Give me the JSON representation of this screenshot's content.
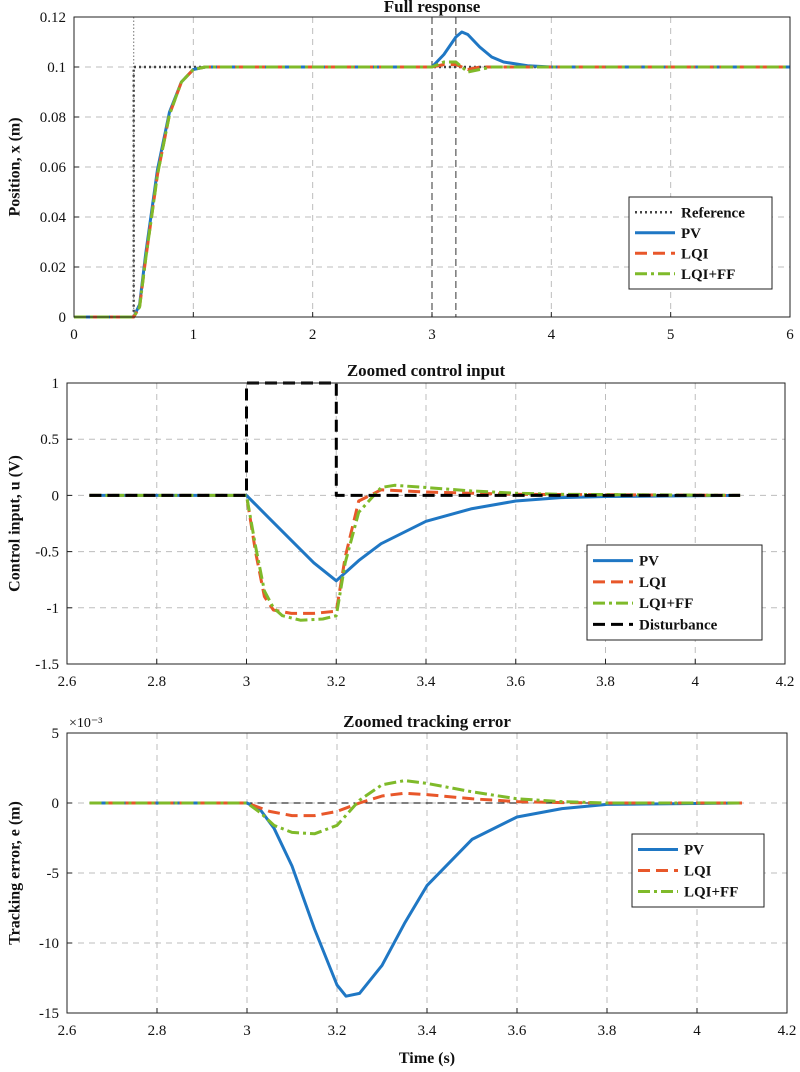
{
  "colors": {
    "pv": "#1f77c4",
    "lqi": "#e8572a",
    "lqiff": "#7fba2a",
    "reference": "#444444",
    "disturbance": "#000000",
    "grid": "#bdbdbd"
  },
  "chart_data": [
    {
      "type": "line",
      "title": "Full response",
      "xlabel": "",
      "ylabel": "Position, x (m)",
      "xlim": [
        0,
        6
      ],
      "ylim": [
        0,
        0.12
      ],
      "xticks": [
        "0",
        "1",
        "2",
        "3",
        "4",
        "5",
        "6"
      ],
      "yticks": [
        "0",
        "0.02",
        "0.04",
        "0.06",
        "0.08",
        "0.1",
        "0.12"
      ],
      "grid": true,
      "legend_position": "bottom-right",
      "vlines": [
        0.5,
        3.0,
        3.2
      ],
      "series": [
        {
          "name": "Reference",
          "style": "dotted",
          "color_key": "reference",
          "x": [
            0,
            0.5,
            0.5,
            1.2,
            3.0,
            3.2,
            6.0
          ],
          "y": [
            0,
            0,
            0.1,
            0.1,
            0.1,
            0.1,
            0.1
          ]
        },
        {
          "name": "PV",
          "style": "solid",
          "color_key": "pv",
          "x": [
            0,
            0.5,
            0.55,
            0.6,
            0.7,
            0.8,
            0.9,
            1.0,
            1.1,
            1.2,
            3.0,
            3.1,
            3.2,
            3.25,
            3.3,
            3.4,
            3.5,
            3.6,
            3.8,
            4.0,
            6.0
          ],
          "y": [
            0,
            0,
            0.005,
            0.025,
            0.059,
            0.082,
            0.094,
            0.099,
            0.1,
            0.1,
            0.1,
            0.105,
            0.112,
            0.114,
            0.113,
            0.108,
            0.104,
            0.102,
            0.1005,
            0.1,
            0.1
          ]
        },
        {
          "name": "LQI",
          "style": "dashed",
          "color_key": "lqi",
          "x": [
            0,
            0.5,
            0.55,
            0.6,
            0.7,
            0.8,
            0.9,
            1.0,
            1.1,
            1.2,
            3.0,
            3.1,
            3.2,
            3.3,
            3.4,
            3.5,
            3.6,
            6.0
          ],
          "y": [
            0,
            0,
            0.004,
            0.023,
            0.057,
            0.081,
            0.094,
            0.099,
            0.1,
            0.1,
            0.1,
            0.101,
            0.101,
            0.099,
            0.1,
            0.1,
            0.1,
            0.1
          ]
        },
        {
          "name": "LQI+FF",
          "style": "dashdot",
          "color_key": "lqiff",
          "x": [
            0,
            0.5,
            0.55,
            0.6,
            0.7,
            0.8,
            0.9,
            1.0,
            1.1,
            1.2,
            3.0,
            3.1,
            3.2,
            3.3,
            3.4,
            3.5,
            3.6,
            6.0
          ],
          "y": [
            0,
            0,
            0.004,
            0.023,
            0.057,
            0.081,
            0.094,
            0.099,
            0.1,
            0.1,
            0.1,
            0.102,
            0.102,
            0.098,
            0.099,
            0.1,
            0.1,
            0.1
          ]
        }
      ]
    },
    {
      "type": "line",
      "title": "Zoomed control input",
      "xlabel": "",
      "ylabel": "Control input, u (V)",
      "xlim": [
        2.6,
        4.2
      ],
      "ylim": [
        -1.5,
        1
      ],
      "xticks": [
        "2.6",
        "2.8",
        "3",
        "3.2",
        "3.4",
        "3.6",
        "3.8",
        "4",
        "4.2"
      ],
      "yticks": [
        "-1.5",
        "-1",
        "-0.5",
        "0",
        "0.5",
        "1"
      ],
      "grid": true,
      "legend_position": "bottom-right",
      "vlines": [],
      "series": [
        {
          "name": "PV",
          "style": "solid",
          "color_key": "pv",
          "x": [
            2.65,
            3.0,
            3.05,
            3.1,
            3.15,
            3.2,
            3.25,
            3.3,
            3.4,
            3.5,
            3.6,
            3.7,
            3.8,
            4.1
          ],
          "y": [
            0,
            0,
            -0.2,
            -0.4,
            -0.6,
            -0.76,
            -0.58,
            -0.43,
            -0.23,
            -0.12,
            -0.05,
            -0.02,
            -0.01,
            0
          ]
        },
        {
          "name": "LQI",
          "style": "dashed",
          "color_key": "lqi",
          "x": [
            2.65,
            3.0,
            3.02,
            3.04,
            3.06,
            3.1,
            3.15,
            3.2,
            3.22,
            3.25,
            3.3,
            3.35,
            3.4,
            3.5,
            3.6,
            4.1
          ],
          "y": [
            0,
            0,
            -0.5,
            -0.9,
            -1.02,
            -1.05,
            -1.05,
            -1.03,
            -0.55,
            -0.05,
            0.05,
            0.04,
            0.03,
            0.02,
            0.01,
            0
          ]
        },
        {
          "name": "LQI+FF",
          "style": "dashdot",
          "color_key": "lqiff",
          "x": [
            2.65,
            3.0,
            3.02,
            3.04,
            3.06,
            3.08,
            3.12,
            3.17,
            3.2,
            3.22,
            3.25,
            3.3,
            3.33,
            3.4,
            3.5,
            3.6,
            3.7,
            4.1
          ],
          "y": [
            0,
            0,
            -0.45,
            -0.85,
            -1.0,
            -1.07,
            -1.11,
            -1.1,
            -1.07,
            -0.6,
            -0.15,
            0.07,
            0.09,
            0.07,
            0.04,
            0.02,
            0.01,
            0
          ]
        },
        {
          "name": "Disturbance",
          "style": "dashed",
          "color_key": "disturbance",
          "x": [
            2.65,
            3.0,
            3.0,
            3.2,
            3.2,
            4.1
          ],
          "y": [
            0,
            0,
            1,
            1,
            0,
            0
          ]
        }
      ]
    },
    {
      "type": "line",
      "title": "Zoomed tracking error",
      "xlabel": "Time (s)",
      "ylabel": "Tracking error, e (m)",
      "exponent_label": "×10⁻³",
      "xlim": [
        2.6,
        4.2
      ],
      "ylim": [
        -15,
        5
      ],
      "xticks": [
        "2.6",
        "2.8",
        "3",
        "3.2",
        "3.4",
        "3.6",
        "3.8",
        "4",
        "4.2"
      ],
      "yticks": [
        "-15",
        "-10",
        "-5",
        "0",
        "5"
      ],
      "grid": true,
      "legend_position": "middle-right",
      "vlines": [],
      "series": [
        {
          "name": "",
          "style": "dashed",
          "color_key": "disturbance",
          "thin": true,
          "x": [
            2.65,
            4.1
          ],
          "y": [
            0,
            0
          ]
        },
        {
          "name": "PV",
          "style": "solid",
          "color_key": "pv",
          "x": [
            2.65,
            3.0,
            3.03,
            3.06,
            3.1,
            3.15,
            3.2,
            3.22,
            3.25,
            3.3,
            3.35,
            3.4,
            3.5,
            3.6,
            3.7,
            3.8,
            4.1
          ],
          "y": [
            0,
            0,
            -0.5,
            -1.8,
            -4.5,
            -9.0,
            -13.0,
            -13.8,
            -13.6,
            -11.6,
            -8.6,
            -5.9,
            -2.6,
            -1.0,
            -0.4,
            -0.1,
            0
          ]
        },
        {
          "name": "LQI",
          "style": "dashed",
          "color_key": "lqi",
          "x": [
            2.65,
            3.0,
            3.05,
            3.1,
            3.15,
            3.2,
            3.25,
            3.3,
            3.35,
            3.4,
            3.5,
            3.6,
            3.7,
            3.8,
            4.1
          ],
          "y": [
            0,
            0,
            -0.6,
            -0.9,
            -0.9,
            -0.6,
            0,
            0.5,
            0.7,
            0.6,
            0.3,
            0.1,
            0.03,
            0,
            0
          ]
        },
        {
          "name": "LQI+FF",
          "style": "dashdot",
          "color_key": "lqiff",
          "x": [
            2.65,
            3.0,
            3.03,
            3.06,
            3.1,
            3.15,
            3.2,
            3.25,
            3.3,
            3.35,
            3.4,
            3.5,
            3.6,
            3.7,
            3.8,
            4.1
          ],
          "y": [
            0,
            0,
            -0.7,
            -1.6,
            -2.1,
            -2.2,
            -1.6,
            0.2,
            1.3,
            1.6,
            1.4,
            0.8,
            0.3,
            0.1,
            0,
            0
          ]
        }
      ]
    }
  ]
}
